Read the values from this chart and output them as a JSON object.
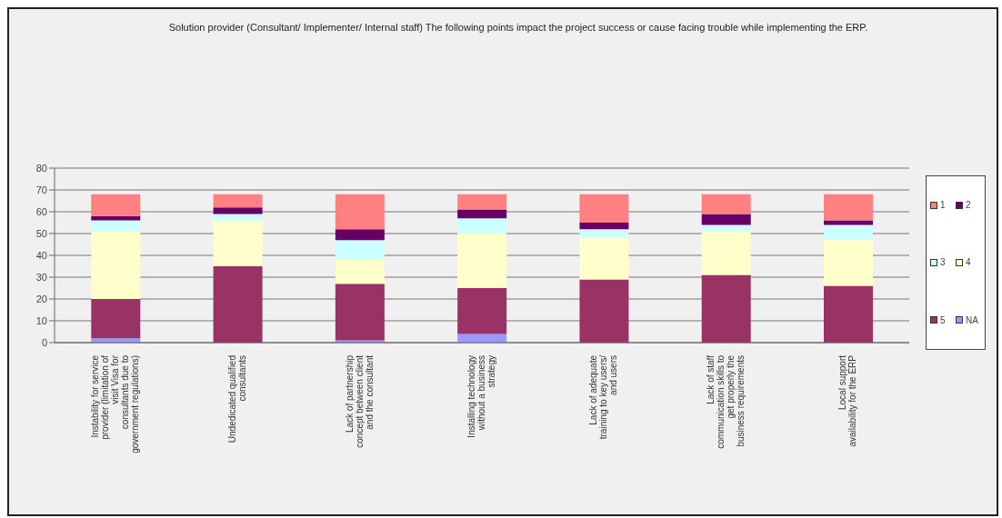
{
  "chart_data": {
    "type": "bar",
    "title": "Solution provider (Consultant/ Implementer/ Internal staff)  The following points impact the project success or cause facing trouble while implementing the ERP.",
    "categories": [
      "Instability for service provider (limitation of visit Visa for consultants due to government regulations)",
      "Undedicated qualified consultants",
      "Lack of partnership concept between client and the consultant",
      "Installing technology without a business strategy",
      "Lack of adequate training to key users/ and users",
      "Lack of staff communication skills to get properly the business requirements",
      "Local support availability for the ERP"
    ],
    "stacked": true,
    "series": [
      {
        "name": "NA",
        "color": "#9999ff",
        "values": [
          2,
          0,
          1,
          4,
          0,
          0,
          0
        ]
      },
      {
        "name": "5",
        "color": "#993366",
        "values": [
          18,
          35,
          26,
          21,
          29,
          31,
          26
        ]
      },
      {
        "name": "4",
        "color": "#ffffcc",
        "values": [
          31,
          21,
          11,
          25,
          19,
          20,
          21
        ]
      },
      {
        "name": "3",
        "color": "#ccffff",
        "values": [
          5,
          3,
          9,
          7,
          4,
          3,
          7
        ]
      },
      {
        "name": "2",
        "color": "#660066",
        "values": [
          2,
          3,
          5,
          4,
          3,
          5,
          2
        ]
      },
      {
        "name": "1",
        "color": "#ff8080",
        "values": [
          10,
          6,
          16,
          7,
          13,
          9,
          12
        ]
      }
    ],
    "ylim": [
      0,
      80
    ],
    "yticks": [
      0,
      10,
      20,
      30,
      40,
      50,
      60,
      70,
      80
    ],
    "grid": "y",
    "legend": "right"
  }
}
